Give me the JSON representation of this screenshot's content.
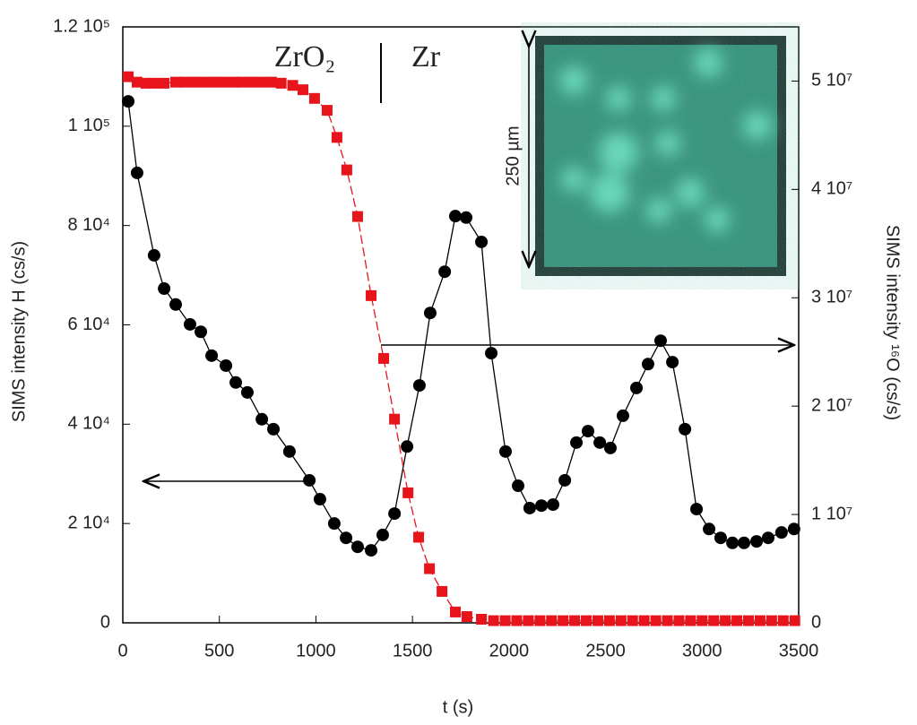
{
  "chart_data": {
    "type": "scatter",
    "x_label": "t (s)",
    "y_label": "SIMS intensity H (cs/s)",
    "y2_label": "SIMS intensity ¹⁶O (cs/s)",
    "annotations": [
      "ZrO₂",
      "Zr",
      "250 µm"
    ],
    "xlim": [
      0,
      3500
    ],
    "xticks": [
      0,
      500,
      1000,
      1500,
      2000,
      2500,
      3000,
      3500
    ],
    "ylim": [
      0,
      120000
    ],
    "yticks": [
      0,
      {
        "value": 20000,
        "label": "2 10⁴"
      },
      {
        "value": 40000,
        "label": "4 10⁴"
      },
      {
        "value": 60000,
        "label": "6 10⁴"
      },
      {
        "value": 80000,
        "label": "8 10⁴"
      },
      {
        "value": 100000,
        "label": "1 10⁵"
      },
      {
        "value": 120000,
        "label": "1.2 10⁵"
      }
    ],
    "y2lim": [
      0,
      55000000
    ],
    "y2ticks": [
      0,
      {
        "value": 10000000,
        "label": "1 10⁷"
      },
      {
        "value": 20000000,
        "label": "2 10⁷"
      },
      {
        "value": 30000000,
        "label": "3 10⁷"
      },
      {
        "value": 40000000,
        "label": "4 10⁷"
      },
      {
        "value": 50000000,
        "label": "5 10⁷"
      }
    ],
    "series": [
      {
        "color": "#000000",
        "marker": "circle",
        "line": "solid",
        "axis": "y",
        "x": [
          28,
          74,
          162,
          214,
          274,
          348,
          404,
          460,
          534,
          585,
          645,
          720,
          780,
          863,
          966,
          1021,
          1095,
          1156,
          1216,
          1286,
          1346,
          1407,
          1472,
          1536,
          1592,
          1667,
          1722,
          1778,
          1857,
          1908,
          1982,
          2047,
          2107,
          2168,
          2228,
          2289,
          2349,
          2409,
          2470,
          2525,
          2590,
          2660,
          2720,
          2785,
          2846,
          2911,
          2971,
          3036,
          3096,
          3157,
          3217,
          3282,
          3342,
          3411,
          3476
        ],
        "values": [
          105000,
          90600,
          74000,
          67300,
          64100,
          60100,
          58600,
          53800,
          51800,
          48400,
          46400,
          41000,
          39000,
          34500,
          28700,
          24900,
          20000,
          17100,
          15300,
          14600,
          17700,
          22000,
          35500,
          47800,
          62400,
          70700,
          81900,
          81600,
          76700,
          54300,
          34500,
          27600,
          23100,
          23600,
          23800,
          28700,
          36300,
          38600,
          36300,
          35200,
          41700,
          47300,
          52100,
          56800,
          52500,
          39000,
          22900,
          18900,
          17100,
          16100,
          16100,
          16400,
          17100,
          18200,
          18900
        ]
      },
      {
        "color": "#e8141b",
        "marker": "square",
        "line": "dashed",
        "axis": "y2",
        "x": [
          28,
          74,
          120,
          162,
          214,
          274,
          320,
          370,
          420,
          470,
          520,
          575,
          620,
          670,
          720,
          770,
          820,
          880,
          933,
          993,
          1058,
          1109,
          1160,
          1216,
          1286,
          1351,
          1407,
          1477,
          1532,
          1588,
          1653,
          1722,
          1782,
          1857,
          1920,
          1980,
          2040,
          2100,
          2160,
          2220,
          2280,
          2340,
          2400,
          2460,
          2520,
          2580,
          2640,
          2700,
          2760,
          2820,
          2880,
          2940,
          3000,
          3060,
          3120,
          3180,
          3240,
          3300,
          3360,
          3420,
          3480
        ],
        "values": [
          50400000,
          49900000,
          49800000,
          49800000,
          49800000,
          49900000,
          49900000,
          49900000,
          49900000,
          49900000,
          49900000,
          49900000,
          49900000,
          49900000,
          49900000,
          49900000,
          49800000,
          49600000,
          49200000,
          48400000,
          47300000,
          44800000,
          41800000,
          37500000,
          30200000,
          24400000,
          18800000,
          12000000,
          7900000,
          5000000,
          2900000,
          1000000,
          580000,
          330000,
          200000,
          200000,
          200000,
          200000,
          200000,
          200000,
          200000,
          200000,
          200000,
          200000,
          200000,
          200000,
          200000,
          200000,
          200000,
          200000,
          200000,
          200000,
          200000,
          200000,
          200000,
          200000,
          200000,
          200000,
          200000,
          200000,
          200000
        ]
      }
    ]
  }
}
